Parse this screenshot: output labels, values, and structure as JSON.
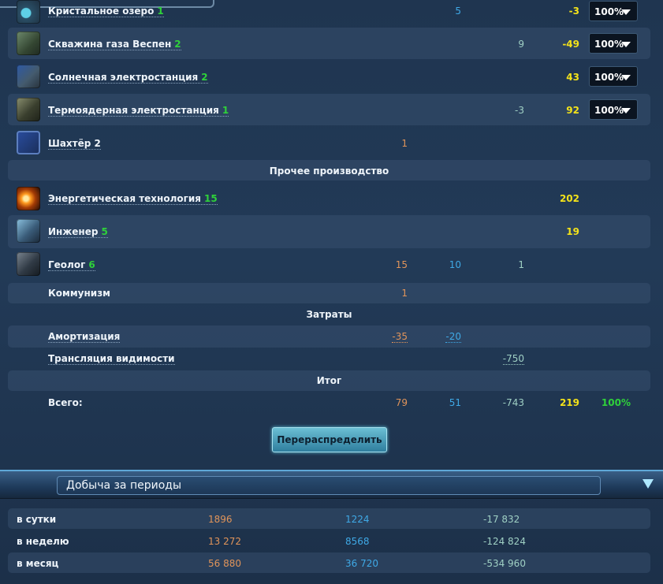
{
  "production": {
    "rows": [
      {
        "name": "Кристальное озеро",
        "level": "1",
        "metal": "",
        "crystal": "5",
        "deuterium": "",
        "energy": "-3",
        "percent": "100%"
      },
      {
        "name": "Скважина газа Веспен",
        "level": "2",
        "metal": "",
        "crystal": "",
        "deuterium": "9",
        "energy": "-49",
        "percent": "100%"
      },
      {
        "name": "Солнечная электростанция",
        "level": "2",
        "metal": "",
        "crystal": "",
        "deuterium": "",
        "energy": "43",
        "percent": "100%"
      },
      {
        "name": "Термоядерная электростанция",
        "level": "1",
        "metal": "",
        "crystal": "",
        "deuterium": "-3",
        "energy": "92",
        "percent": "100%"
      },
      {
        "name": "Шахтёр 2",
        "level": "",
        "metal": "1",
        "crystal": "",
        "deuterium": "",
        "energy": "",
        "percent": ""
      }
    ]
  },
  "other": {
    "title": "Прочее производство",
    "rows": [
      {
        "name": "Энергетическая технология",
        "level": "15",
        "metal": "",
        "crystal": "",
        "deuterium": "",
        "energy": "202"
      },
      {
        "name": "Инженер",
        "level": "5",
        "metal": "",
        "crystal": "",
        "deuterium": "",
        "energy": "19"
      },
      {
        "name": "Геолог",
        "level": "6",
        "metal": "15",
        "crystal": "10",
        "deuterium": "1",
        "energy": ""
      },
      {
        "name": "Коммунизм",
        "level": "",
        "metal": "1",
        "crystal": "",
        "deuterium": "",
        "energy": ""
      }
    ]
  },
  "costs": {
    "title": "Затраты",
    "rows": [
      {
        "name": "Амортизация",
        "metal": "-35",
        "crystal": "-20",
        "deuterium": ""
      },
      {
        "name": "Трансляция видимости",
        "metal": "",
        "crystal": "",
        "deuterium": "-750"
      }
    ]
  },
  "total": {
    "title": "Итог",
    "label": "Всего:",
    "metal": "79",
    "crystal": "51",
    "deuterium": "-743",
    "energy": "219",
    "percent": "100%"
  },
  "redistribute_button": "Перераспределить",
  "periods": {
    "title": "Добыча за периоды",
    "rows": [
      {
        "label": "в сутки",
        "metal": "1896",
        "crystal": "1224",
        "deuterium": "-17 832"
      },
      {
        "label": "в неделю",
        "metal": "13 272",
        "crystal": "8568",
        "deuterium": "-124 824"
      },
      {
        "label": "в месяц",
        "metal": "56 880",
        "crystal": "36 720",
        "deuterium": "-534 960"
      }
    ]
  },
  "colors": {
    "metal": "#e0945a",
    "crystal": "#3fa9e6",
    "deuterium": "#9fd0c4",
    "energy": "#f3e21a",
    "level": "#2fd13a"
  }
}
